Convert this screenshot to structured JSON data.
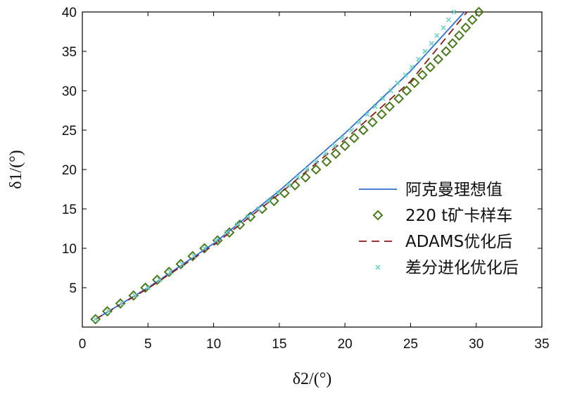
{
  "chart_data": {
    "type": "line",
    "xlabel": "δ2/(°)",
    "ylabel": "δ1/(°)",
    "xlim": [
      0,
      35
    ],
    "ylim": [
      0,
      40
    ],
    "xticks": [
      0,
      5,
      10,
      15,
      20,
      25,
      30,
      35
    ],
    "yticks": [
      5,
      10,
      15,
      20,
      25,
      30,
      35,
      40
    ],
    "grid": false,
    "legend_position": "right",
    "series": [
      {
        "name": "阿克曼理想值",
        "style": "solid-line",
        "color": "#2f6fd0",
        "x": [
          1.0,
          5.0,
          10.0,
          15.0,
          20.0,
          25.0,
          29.1
        ],
        "y": [
          1.0,
          5.0,
          10.6,
          17.3,
          24.6,
          32.5,
          40.0
        ]
      },
      {
        "name": "220 t矿卡样车",
        "style": "diamond-markers",
        "color": "#4a7a1c",
        "x": [
          1.0,
          1.9,
          2.9,
          3.9,
          4.8,
          5.7,
          6.6,
          7.5,
          8.4,
          9.3,
          10.3,
          11.2,
          12.0,
          12.8,
          13.7,
          14.6,
          15.4,
          16.2,
          17.0,
          17.8,
          18.6,
          19.3,
          20.0,
          20.7,
          21.4,
          22.1,
          22.8,
          23.4,
          24.1,
          24.7,
          25.3,
          25.9,
          26.5,
          27.1,
          27.7,
          28.2,
          28.7,
          29.2,
          29.7,
          30.2
        ],
        "y": [
          1,
          2,
          3,
          4,
          5,
          6,
          7,
          8,
          9,
          10,
          11,
          12,
          13,
          14,
          15,
          16,
          17,
          18,
          19,
          20,
          21,
          22,
          23,
          24,
          25,
          26,
          27,
          28,
          29,
          30,
          31,
          32,
          33,
          34,
          35,
          36,
          37,
          38,
          39,
          40
        ]
      },
      {
        "name": "ADAMS优化后",
        "style": "dashed-line",
        "color": "#8b1a1a",
        "x": [
          1.0,
          5.0,
          10.0,
          15.0,
          20.0,
          25.0,
          29.3
        ],
        "y": [
          1.0,
          4.9,
          10.4,
          16.9,
          23.8,
          31.2,
          40.0
        ]
      },
      {
        "name": "差分进化优化后",
        "style": "x-markers",
        "color": "#6fd2c4",
        "x": [
          1.0,
          2.0,
          3.0,
          4.0,
          5.0,
          5.9,
          6.7,
          7.6,
          8.5,
          9.3,
          10.2,
          11.0,
          11.8,
          12.6,
          13.4,
          14.2,
          14.9,
          15.7,
          16.4,
          17.1,
          17.8,
          18.5,
          19.2,
          19.8,
          20.5,
          21.1,
          21.7,
          22.3,
          22.9,
          23.5,
          24.0,
          24.6,
          25.1,
          25.6,
          26.1,
          26.6,
          27.0,
          27.5,
          27.9,
          28.3
        ],
        "y": [
          1,
          2,
          3,
          4,
          5,
          6,
          7,
          8,
          9,
          10,
          11,
          12,
          13,
          14,
          15,
          16,
          17,
          18,
          19,
          20,
          21,
          22,
          23,
          24,
          25,
          26,
          27,
          28,
          29,
          30,
          31,
          32,
          33,
          34,
          35,
          36,
          37,
          38,
          39,
          40
        ]
      }
    ]
  }
}
